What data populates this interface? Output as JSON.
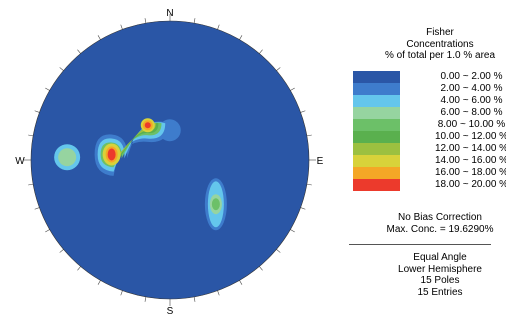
{
  "compass": {
    "north": "N",
    "south": "S",
    "west": "W",
    "east": "E"
  },
  "legend": {
    "title_lines": [
      "Fisher",
      "Concentrations",
      "% of total per 1.0 % area"
    ],
    "items": [
      {
        "range": "0.00 ~  2.00 %",
        "color": "#2a56a6"
      },
      {
        "range": "2.00 ~  4.00 %",
        "color": "#3e7ccc"
      },
      {
        "range": "4.00 ~  6.00 %",
        "color": "#64c6ec"
      },
      {
        "range": "6.00 ~  8.00 %",
        "color": "#96d4a0"
      },
      {
        "range": "8.00 ~ 10.00 %",
        "color": "#6cc068"
      },
      {
        "range": "10.00 ~ 12.00 %",
        "color": "#5ab04e"
      },
      {
        "range": "12.00 ~ 14.00 %",
        "color": "#9cc040"
      },
      {
        "range": "14.00 ~ 16.00 %",
        "color": "#d8d23a"
      },
      {
        "range": "16.00 ~ 18.00 %",
        "color": "#f4a726"
      },
      {
        "range": "18.00 ~ 20.00 %",
        "color": "#ec3a2c"
      }
    ]
  },
  "bias": {
    "line1": "No Bias Correction",
    "line2": "Max. Conc. = 19.6290%"
  },
  "projection": {
    "lines": [
      "Equal Angle",
      "Lower Hemisphere",
      "15 Poles",
      "15 Entries"
    ]
  },
  "chart_data": {
    "type": "heatmap",
    "projection": "equal-angle stereonet, lower hemisphere",
    "poles": 15,
    "entries": 15,
    "max_concentration_percent": 19.629,
    "concentration_clusters": [
      {
        "cluster": "west",
        "x": -0.74,
        "y": -0.02,
        "peak_band": "6.00 ~  8.00 %"
      },
      {
        "cluster": "central-left",
        "x": -0.42,
        "y": -0.04,
        "peak_band": "18.00 ~ 20.00 %"
      },
      {
        "cluster": "central",
        "x": -0.16,
        "y": -0.25,
        "peak_band": "18.00 ~ 20.00 %"
      },
      {
        "cluster": "east",
        "x": 0.33,
        "y": 0.21,
        "peak_band": "8.00 ~ 10.00 %"
      }
    ]
  }
}
